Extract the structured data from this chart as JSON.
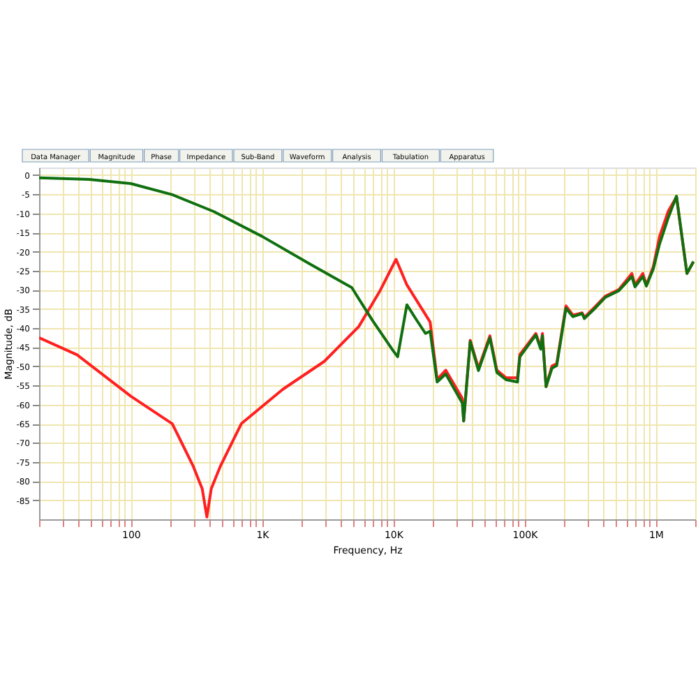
{
  "chart_data": {
    "type": "line",
    "xlabel": "Frequency, Hz",
    "ylabel": "Magnitude, dB",
    "annotations": [
      "Data Manager",
      "Magnitude",
      "Phase",
      "Impedance",
      "Sub-Band",
      "Waveform",
      "Analysis",
      "Tabulation",
      "Apparatus"
    ],
    "log": "x",
    "grid": true,
    "line_style": "solid",
    "marker": "none",
    "xlim": [
      20,
      2000000
    ],
    "ylim": [
      -90,
      2
    ],
    "xticks": [
      {
        "value": 20,
        "label": null
      },
      {
        "value": 30,
        "label": null
      },
      {
        "value": 40,
        "label": null
      },
      {
        "value": 50,
        "label": null
      },
      {
        "value": 60,
        "label": null
      },
      {
        "value": 70,
        "label": null
      },
      {
        "value": 80,
        "label": null
      },
      {
        "value": 90,
        "label": null
      },
      100,
      {
        "value": 200,
        "label": null
      },
      {
        "value": 300,
        "label": null
      },
      {
        "value": 400,
        "label": null
      },
      {
        "value": 500,
        "label": null
      },
      {
        "value": 600,
        "label": null
      },
      {
        "value": 700,
        "label": null
      },
      {
        "value": 800,
        "label": null
      },
      {
        "value": 900,
        "label": null
      },
      {
        "value": 1000,
        "label": "1K"
      },
      {
        "value": 2000,
        "label": null
      },
      {
        "value": 3000,
        "label": null
      },
      {
        "value": 4000,
        "label": null
      },
      {
        "value": 5000,
        "label": null
      },
      {
        "value": 6000,
        "label": null
      },
      {
        "value": 7000,
        "label": null
      },
      {
        "value": 8000,
        "label": null
      },
      {
        "value": 9000,
        "label": null
      },
      {
        "value": 10000,
        "label": "10K"
      },
      {
        "value": 20000,
        "label": null
      },
      {
        "value": 30000,
        "label": null
      },
      {
        "value": 40000,
        "label": null
      },
      {
        "value": 50000,
        "label": null
      },
      {
        "value": 60000,
        "label": null
      },
      {
        "value": 70000,
        "label": null
      },
      {
        "value": 80000,
        "label": null
      },
      {
        "value": 90000,
        "label": null
      },
      {
        "value": 100000,
        "label": "100K"
      },
      {
        "value": 200000,
        "label": null
      },
      {
        "value": 300000,
        "label": null
      },
      {
        "value": 400000,
        "label": null
      },
      {
        "value": 500000,
        "label": null
      },
      {
        "value": 600000,
        "label": null
      },
      {
        "value": 700000,
        "label": null
      },
      {
        "value": 800000,
        "label": null
      },
      {
        "value": 900000,
        "label": null
      },
      {
        "value": 1000000,
        "label": "1M"
      },
      {
        "value": 2000000,
        "label": null
      }
    ],
    "yticks": [
      0,
      -5,
      -10,
      -15,
      -20,
      -25,
      -30,
      -35,
      -40,
      -45,
      -50,
      -55,
      -60,
      -65,
      -70,
      -75,
      -80,
      -85
    ],
    "series": [
      {
        "color": "#ff2020",
        "x": [
          20,
          39,
          100,
          207,
          298,
          350,
          380,
          410,
          483,
          695,
          1440,
          2980,
          5460,
          7850,
          10500,
          12700,
          19100,
          21600,
          25100,
          33600,
          34400,
          38600,
          44600,
          54500,
          61600,
          72400,
          88500,
          92200,
          122000,
          133000,
          137000,
          146000,
          162000,
          176000,
          207000,
          234000,
          275000,
          286000,
          336000,
          411000,
          524000,
          658000,
          695000,
          798000,
          849000,
          959000,
          1070000,
          1250000,
          1440000,
          1730000,
          1940000
        ],
        "values": [
          -42.5,
          -47,
          -57.8,
          -65,
          -76,
          -82,
          -89.4,
          -82,
          -76,
          -65,
          -56,
          -48.7,
          -39.6,
          -30.5,
          -22,
          -28.7,
          -38.4,
          -53.4,
          -51,
          -58.4,
          -64.3,
          -43.2,
          -50.5,
          -42,
          -51,
          -53,
          -53,
          -46.9,
          -41.4,
          -45,
          -41.4,
          -55.3,
          -49.9,
          -49.3,
          -34.2,
          -36.6,
          -36,
          -37.2,
          -34.8,
          -31.7,
          -29.9,
          -25.7,
          -28.7,
          -25.7,
          -28.7,
          -23.9,
          -16,
          -9.3,
          -5.7,
          -25.7,
          -22.6
        ]
      },
      {
        "color": "#107010",
        "x": [
          20,
          48,
          100,
          207,
          428,
          1000,
          2330,
          4830,
          6950,
          9890,
          10800,
          12700,
          15000,
          17600,
          19100,
          21600,
          25100,
          33600,
          34400,
          38600,
          44600,
          54500,
          61600,
          72400,
          88500,
          92200,
          122000,
          133000,
          137000,
          146000,
          162000,
          176000,
          207000,
          234000,
          275000,
          286000,
          336000,
          411000,
          524000,
          658000,
          695000,
          798000,
          849000,
          959000,
          1070000,
          1250000,
          1440000,
          1730000,
          1940000
        ],
        "values": [
          -0.7,
          -1.1,
          -2.2,
          -5.1,
          -9.5,
          -16,
          -23.3,
          -29.4,
          -38,
          -45.7,
          -47.5,
          -33.9,
          -37.8,
          -41.4,
          -40.8,
          -54.1,
          -52,
          -59.6,
          -64.3,
          -43.5,
          -51.1,
          -42.5,
          -51.6,
          -53.5,
          -54.1,
          -47.5,
          -41.8,
          -45.5,
          -42,
          -55.3,
          -50.5,
          -49.8,
          -34.8,
          -37,
          -36.2,
          -37.5,
          -35.2,
          -32,
          -30.2,
          -26.5,
          -29.2,
          -26.5,
          -29,
          -24.5,
          -18,
          -11,
          -5.5,
          -25.7,
          -22.6
        ]
      }
    ]
  }
}
